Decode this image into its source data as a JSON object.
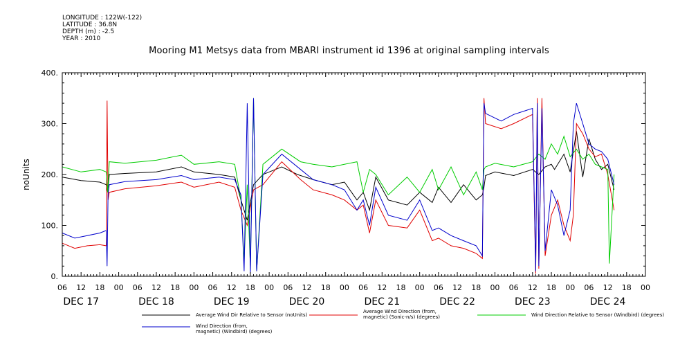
{
  "meta": {
    "longitude": "LONGITUDE : 122W(-122)",
    "latitude": "LATITUDE : 36.8N",
    "depth": "DEPTH (m) : -2.5",
    "year": "YEAR : 2010"
  },
  "chart_data": {
    "type": "line",
    "title": "Mooring M1 Metsys data from MBARI instrument id 1396 at original sampling intervals",
    "xlabel": "",
    "ylabel": "noUnits",
    "ylim": [
      0,
      400
    ],
    "y_ticks": [
      "0.",
      "100.",
      "200.",
      "300.",
      "400."
    ],
    "x_range_hours": [
      0,
      186
    ],
    "x_hour_ticks": [
      {
        "t": 0,
        "label": "06"
      },
      {
        "t": 6,
        "label": "12"
      },
      {
        "t": 12,
        "label": "18"
      },
      {
        "t": 18,
        "label": "00"
      },
      {
        "t": 24,
        "label": "06"
      },
      {
        "t": 30,
        "label": "12"
      },
      {
        "t": 36,
        "label": "18"
      },
      {
        "t": 42,
        "label": "00"
      },
      {
        "t": 48,
        "label": "06"
      },
      {
        "t": 54,
        "label": "12"
      },
      {
        "t": 60,
        "label": "18"
      },
      {
        "t": 66,
        "label": "00"
      },
      {
        "t": 72,
        "label": "06"
      },
      {
        "t": 78,
        "label": "12"
      },
      {
        "t": 84,
        "label": "18"
      },
      {
        "t": 90,
        "label": "00"
      },
      {
        "t": 96,
        "label": "06"
      },
      {
        "t": 102,
        "label": "12"
      },
      {
        "t": 108,
        "label": "18"
      },
      {
        "t": 114,
        "label": "00"
      },
      {
        "t": 120,
        "label": "06"
      },
      {
        "t": 126,
        "label": "12"
      },
      {
        "t": 132,
        "label": "18"
      },
      {
        "t": 138,
        "label": "00"
      },
      {
        "t": 144,
        "label": "06"
      },
      {
        "t": 150,
        "label": "12"
      },
      {
        "t": 156,
        "label": "18"
      },
      {
        "t": 162,
        "label": "00"
      },
      {
        "t": 168,
        "label": "06"
      },
      {
        "t": 174,
        "label": "12"
      },
      {
        "t": 180,
        "label": "18"
      },
      {
        "t": 186,
        "label": "00"
      }
    ],
    "x_day_labels": [
      {
        "t": 6,
        "label": "DEC 17"
      },
      {
        "t": 30,
        "label": "DEC 18"
      },
      {
        "t": 54,
        "label": "DEC 19"
      },
      {
        "t": 78,
        "label": "DEC 20"
      },
      {
        "t": 102,
        "label": "DEC 21"
      },
      {
        "t": 126,
        "label": "DEC 22"
      },
      {
        "t": 150,
        "label": "DEC 23"
      },
      {
        "t": 174,
        "label": "DEC 24"
      }
    ],
    "series": [
      {
        "name": "Average Wind Dir Relative to Sensor (noUnits)",
        "color": "#000000",
        "x": [
          0,
          6,
          12,
          14,
          14.5,
          15,
          20,
          30,
          38,
          42,
          50,
          55,
          57,
          59,
          61,
          64,
          70,
          75,
          80,
          86,
          90,
          94,
          96,
          98,
          100,
          104,
          110,
          114,
          118,
          120,
          124,
          128,
          132,
          134,
          134.5,
          135,
          138,
          144,
          150,
          152,
          154,
          156,
          157,
          160,
          162,
          164,
          166,
          168,
          170,
          172,
          174,
          176
        ],
        "y": [
          195,
          188,
          185,
          180,
          165,
          200,
          202,
          205,
          215,
          205,
          200,
          195,
          150,
          110,
          180,
          200,
          215,
          200,
          190,
          180,
          185,
          150,
          165,
          130,
          195,
          150,
          140,
          165,
          145,
          175,
          145,
          180,
          150,
          160,
          175,
          198,
          205,
          198,
          210,
          200,
          215,
          220,
          210,
          240,
          205,
          285,
          195,
          270,
          230,
          210,
          220,
          170
        ]
      },
      {
        "name": "Average Wind Direction (from, magnetic) (Sonic-n/s) (degrees)",
        "color": "#e00000",
        "x": [
          0,
          4,
          8,
          12,
          14,
          14.3,
          14.6,
          15,
          20,
          30,
          38,
          42,
          50,
          55,
          57,
          59,
          61,
          64,
          70,
          76,
          80,
          86,
          90,
          94,
          96,
          98,
          100,
          104,
          110,
          114,
          118,
          120,
          124,
          128,
          132,
          134,
          134.5,
          135,
          140,
          144,
          150,
          151,
          151.5,
          152,
          153,
          154,
          156,
          158,
          160,
          162,
          163,
          164,
          166,
          168,
          170,
          172,
          174,
          176
        ],
        "y": [
          65,
          55,
          60,
          62,
          60,
          345,
          150,
          165,
          172,
          178,
          185,
          175,
          185,
          175,
          130,
          100,
          170,
          180,
          225,
          190,
          170,
          160,
          150,
          130,
          140,
          85,
          150,
          100,
          95,
          130,
          70,
          75,
          60,
          55,
          45,
          35,
          350,
          300,
          290,
          300,
          318,
          5,
          350,
          15,
          350,
          40,
          120,
          150,
          100,
          70,
          120,
          300,
          280,
          250,
          235,
          240,
          200,
          130
        ]
      },
      {
        "name": "Wind Direction Relative to Sensor (Windbird) (degrees)",
        "color": "#00cc00",
        "x": [
          0,
          6,
          12,
          14,
          14.5,
          15,
          20,
          30,
          38,
          42,
          50,
          55,
          57,
          58,
          59,
          60,
          61,
          62,
          64,
          70,
          76,
          80,
          86,
          90,
          94,
          96,
          98,
          100,
          104,
          110,
          114,
          118,
          120,
          124,
          128,
          132,
          134,
          134.5,
          135,
          138,
          144,
          150,
          152,
          154,
          156,
          158,
          160,
          162,
          164,
          166,
          168,
          170,
          172,
          174,
          174.5,
          176
        ],
        "y": [
          215,
          205,
          210,
          205,
          165,
          225,
          222,
          228,
          238,
          220,
          225,
          220,
          150,
          30,
          180,
          20,
          350,
          10,
          220,
          250,
          225,
          220,
          215,
          220,
          225,
          165,
          210,
          200,
          160,
          195,
          165,
          210,
          170,
          215,
          160,
          205,
          170,
          210,
          215,
          222,
          215,
          225,
          240,
          230,
          260,
          240,
          275,
          235,
          250,
          230,
          240,
          220,
          215,
          210,
          25,
          200
        ]
      },
      {
        "name": "Wind Direction (from, magnetic) (Windbird) (degrees)",
        "color": "#0000cc",
        "x": [
          0,
          4,
          8,
          12,
          14,
          14.3,
          14.6,
          15,
          20,
          30,
          38,
          42,
          50,
          55,
          57,
          58,
          59,
          60,
          61,
          62,
          64,
          70,
          76,
          80,
          86,
          90,
          94,
          96,
          98,
          100,
          104,
          110,
          114,
          118,
          120,
          124,
          128,
          132,
          134,
          134.5,
          135,
          140,
          144,
          150,
          151,
          151.5,
          152,
          153,
          154,
          156,
          158,
          160,
          162,
          163,
          164,
          166,
          168,
          170,
          172,
          174,
          176
        ],
        "y": [
          85,
          75,
          80,
          85,
          90,
          20,
          160,
          180,
          186,
          190,
          198,
          190,
          195,
          190,
          160,
          10,
          340,
          5,
          350,
          10,
          200,
          240,
          210,
          190,
          180,
          170,
          130,
          150,
          100,
          175,
          120,
          110,
          150,
          90,
          95,
          80,
          70,
          60,
          40,
          340,
          320,
          305,
          318,
          330,
          10,
          340,
          20,
          330,
          50,
          170,
          140,
          80,
          130,
          300,
          340,
          300,
          260,
          250,
          245,
          230,
          180
        ]
      }
    ]
  },
  "legend": {
    "black": "Average Wind Dir Relative to Sensor (noUnits)",
    "red_1": "Average Wind Direction (from,",
    "red_2": "magnetic) (Sonic-n/s) (degrees)",
    "green": "Wind Direction Relative to Sensor (Windbird) (degrees)",
    "blue_1": "Wind Direction (from,",
    "blue_2": "magnetic) (Windbird) (degrees)"
  }
}
